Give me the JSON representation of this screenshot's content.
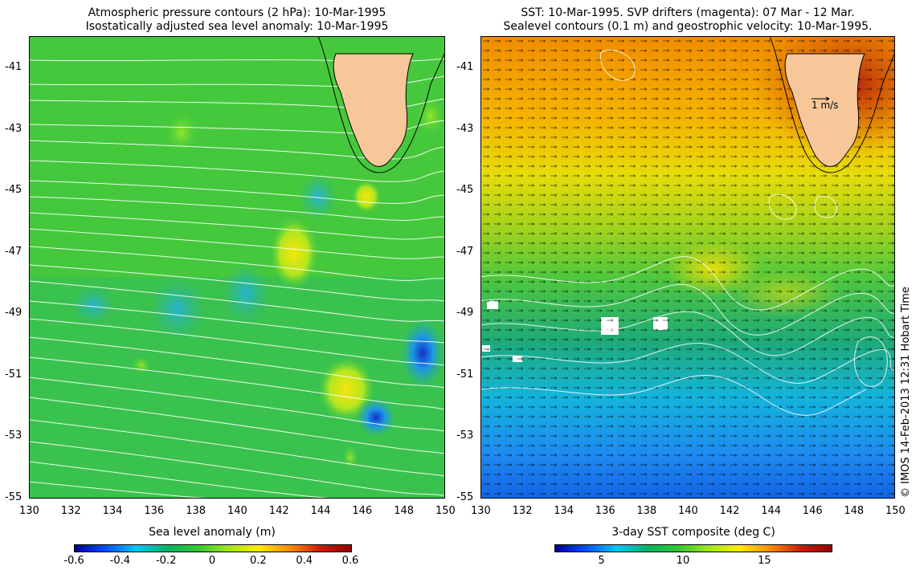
{
  "left_panel": {
    "title_line1": "Atmospheric pressure contours (2 hPa): 10-Mar-1995",
    "title_line2": "Isostatically adjusted sea level anomaly: 10-Mar-1995",
    "colorbar": {
      "title": "Sea level anomaly (m)",
      "ticks": [
        "-0.6",
        "-0.4",
        "-0.2",
        "0",
        "0.2",
        "0.4",
        "0.6"
      ],
      "colors": [
        "#00008c",
        "#0050ff",
        "#00c8ff",
        "#00b464",
        "#32c832",
        "#a0e61e",
        "#ffeb00",
        "#ff8c00",
        "#c81e00",
        "#960000"
      ]
    }
  },
  "right_panel": {
    "title_line1": "SST: 10-Mar-1995. SVP drifters (magenta): 07 Mar - 12 Mar.",
    "title_line2": "Sealevel contours (0.1 m) and geostrophic velocity: 10-Mar-1995.",
    "velocity_scale_label": "1 m/s",
    "colorbar": {
      "title": "3-day SST composite (deg C)",
      "ticks": [
        "5",
        "10",
        "15"
      ],
      "colors": [
        "#00008c",
        "#0050ff",
        "#00c8ff",
        "#00b464",
        "#32c832",
        "#a0e61e",
        "#ffeb00",
        "#ff8c00",
        "#c81e00",
        "#960000"
      ]
    }
  },
  "axes": {
    "lat_ticks": [
      "-41",
      "-43",
      "-45",
      "-47",
      "-49",
      "-51",
      "-53",
      "-55"
    ],
    "lon_ticks": [
      "130",
      "132",
      "134",
      "136",
      "138",
      "140",
      "142",
      "144",
      "146",
      "148",
      "150"
    ]
  },
  "credit": "© IMOS 14-Feb-2013 12:31 Hobart Time",
  "colors": {
    "land": "#f7c79a",
    "contour": "#ffffff",
    "ocean_green": "#32c832"
  }
}
